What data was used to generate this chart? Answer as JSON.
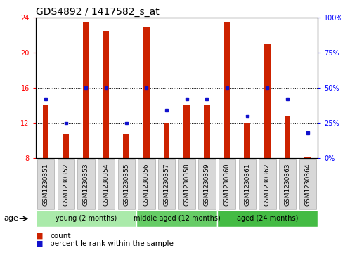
{
  "title": "GDS4892 / 1417582_s_at",
  "samples": [
    "GSM1230351",
    "GSM1230352",
    "GSM1230353",
    "GSM1230354",
    "GSM1230355",
    "GSM1230356",
    "GSM1230357",
    "GSM1230358",
    "GSM1230359",
    "GSM1230360",
    "GSM1230361",
    "GSM1230362",
    "GSM1230363",
    "GSM1230364"
  ],
  "count_values": [
    14.0,
    10.7,
    23.5,
    22.5,
    10.7,
    23.0,
    12.0,
    14.0,
    14.0,
    23.5,
    12.0,
    21.0,
    12.8,
    8.2
  ],
  "percentile_values": [
    42,
    25,
    50,
    50,
    25,
    50,
    34,
    42,
    42,
    50,
    30,
    50,
    42,
    18
  ],
  "ylim_left": [
    8,
    24
  ],
  "ylim_right": [
    0,
    100
  ],
  "yticks_left": [
    8,
    12,
    16,
    20,
    24
  ],
  "yticks_right": [
    0,
    25,
    50,
    75,
    100
  ],
  "ytick_labels_right": [
    "0%",
    "25%",
    "50%",
    "75%",
    "100%"
  ],
  "bar_color": "#cc2200",
  "dot_color": "#1111cc",
  "bar_bottom": 8,
  "groups": [
    {
      "label": "young (2 months)",
      "start": 0,
      "end": 5,
      "color": "#aaeaaa"
    },
    {
      "label": "middle aged (12 months)",
      "start": 5,
      "end": 9,
      "color": "#66cc66"
    },
    {
      "label": "aged (24 months)",
      "start": 9,
      "end": 14,
      "color": "#44bb44"
    }
  ],
  "age_label": "age",
  "legend_count_label": "count",
  "legend_percentile_label": "percentile rank within the sample",
  "title_fontsize": 10,
  "tick_fontsize": 7,
  "grid_color": "#000000",
  "background_color": "#ffffff"
}
